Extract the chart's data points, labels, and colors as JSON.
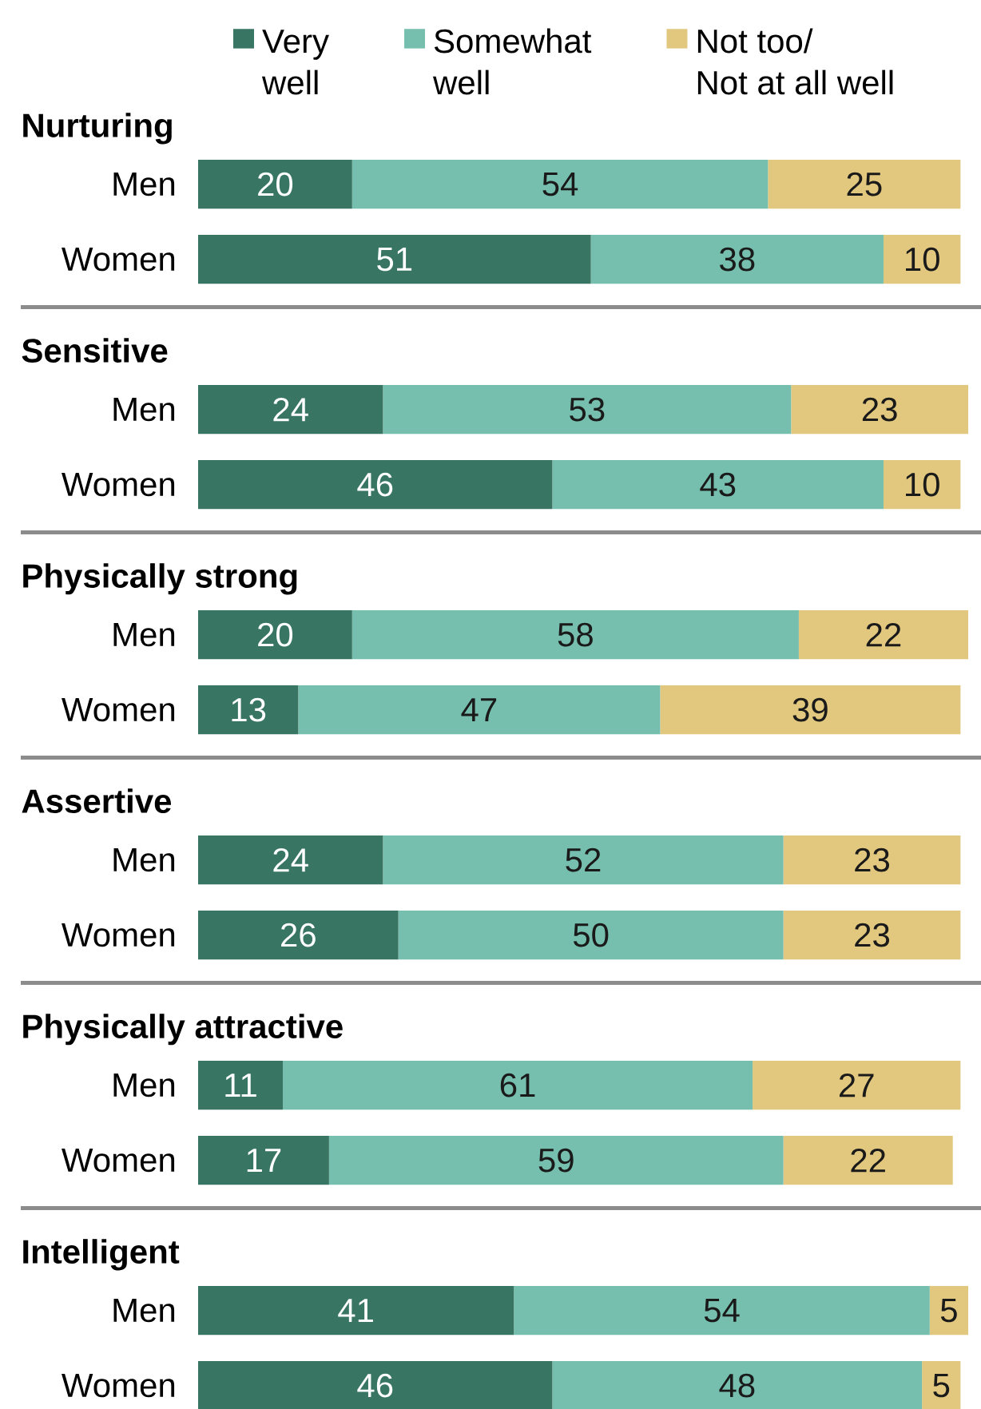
{
  "chart_data": [
    {
      "type": "bar",
      "orientation": "horizontal",
      "stacked": true,
      "data_labels": true,
      "legend": "top",
      "title": "Nurturing",
      "categories": [
        "Men",
        "Women"
      ],
      "series": [
        {
          "name": "Very well",
          "color": "#387563",
          "values": [
            20,
            51
          ]
        },
        {
          "name": "Somewhat well",
          "color": "#76bead",
          "values": [
            54,
            38
          ]
        },
        {
          "name": "Not too/ Not at all well",
          "color": "#e2c87e",
          "values": [
            25,
            10
          ]
        }
      ]
    },
    {
      "type": "bar",
      "orientation": "horizontal",
      "stacked": true,
      "data_labels": true,
      "title": "Sensitive",
      "categories": [
        "Men",
        "Women"
      ],
      "series": [
        {
          "color": "#387563",
          "values": [
            24,
            46
          ]
        },
        {
          "color": "#76bead",
          "values": [
            53,
            43
          ]
        },
        {
          "color": "#e2c87e",
          "values": [
            23,
            10
          ]
        }
      ]
    },
    {
      "type": "bar",
      "orientation": "horizontal",
      "stacked": true,
      "data_labels": true,
      "title": "Physically strong",
      "categories": [
        "Men",
        "Women"
      ],
      "series": [
        {
          "color": "#387563",
          "values": [
            20,
            13
          ]
        },
        {
          "color": "#76bead",
          "values": [
            58,
            47
          ]
        },
        {
          "color": "#e2c87e",
          "values": [
            22,
            39
          ]
        }
      ]
    },
    {
      "type": "bar",
      "orientation": "horizontal",
      "stacked": true,
      "data_labels": true,
      "title": "Assertive",
      "categories": [
        "Men",
        "Women"
      ],
      "series": [
        {
          "color": "#387563",
          "values": [
            24,
            26
          ]
        },
        {
          "color": "#76bead",
          "values": [
            52,
            50
          ]
        },
        {
          "color": "#e2c87e",
          "values": [
            23,
            23
          ]
        }
      ]
    },
    {
      "type": "bar",
      "orientation": "horizontal",
      "stacked": true,
      "data_labels": true,
      "title": "Physically attractive",
      "categories": [
        "Men",
        "Women"
      ],
      "series": [
        {
          "color": "#387563",
          "values": [
            11,
            17
          ]
        },
        {
          "color": "#76bead",
          "values": [
            61,
            59
          ]
        },
        {
          "color": "#e2c87e",
          "values": [
            27,
            22
          ]
        }
      ]
    },
    {
      "type": "bar",
      "orientation": "horizontal",
      "stacked": true,
      "data_labels": true,
      "title": "Intelligent",
      "categories": [
        "Men",
        "Women"
      ],
      "series": [
        {
          "color": "#387563",
          "values": [
            41,
            46
          ]
        },
        {
          "color": "#76bead",
          "values": [
            54,
            48
          ]
        },
        {
          "color": "#e2c87e",
          "values": [
            5,
            5
          ]
        }
      ]
    }
  ]
}
